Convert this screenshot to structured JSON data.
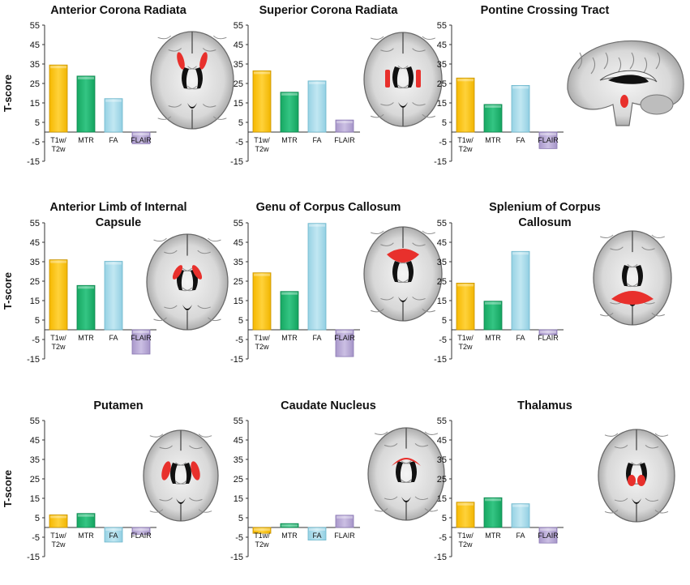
{
  "chart_data": {
    "type": "bar",
    "ylabel": "T-score",
    "yticks": [
      55,
      45,
      35,
      25,
      15,
      5,
      -5,
      -15
    ],
    "ylim": [
      -15,
      55
    ],
    "categories": [
      "T1w/T2w",
      "MTR",
      "FA",
      "FLAIR"
    ],
    "colors": {
      "T1w/T2w": "#f8c41a",
      "MTR": "#27b973",
      "FA": "#a9dbe9",
      "FLAIR": "#b9aad6"
    },
    "panels": [
      {
        "title": [
          "Anterior Corona Radiata"
        ],
        "values": [
          34.5,
          28.8,
          17.2,
          -6.0
        ],
        "brain": "axial-corona-anterior"
      },
      {
        "title": [
          "Superior Corona Radiata"
        ],
        "values": [
          31.5,
          20.5,
          26.3,
          6.2
        ],
        "brain": "axial-corona-superior"
      },
      {
        "title": [
          "Pontine Crossing Tract"
        ],
        "values": [
          27.8,
          14.2,
          24.0,
          -8.5
        ],
        "brain": "sagittal-pons"
      },
      {
        "title": [
          "Anterior Limb of Internal",
          "Capsule"
        ],
        "values": [
          36.0,
          22.8,
          35.2,
          -12.5
        ],
        "brain": "axial-internal-capsule"
      },
      {
        "title": [
          "Genu of Corpus Callosum"
        ],
        "values": [
          29.3,
          19.7,
          54.7,
          -13.8
        ],
        "brain": "axial-genu"
      },
      {
        "title": [
          "Splenium of Corpus",
          "Callosum"
        ],
        "values": [
          24.0,
          14.7,
          40.3,
          -2.5
        ],
        "brain": "axial-splenium"
      },
      {
        "title": [
          "Putamen"
        ],
        "values": [
          6.5,
          7.2,
          -7.5,
          -3.5
        ],
        "brain": "axial-putamen"
      },
      {
        "title": [
          "Caudate Nucleus"
        ],
        "values": [
          -3.0,
          2.0,
          -6.5,
          6.3
        ],
        "brain": "axial-caudate"
      },
      {
        "title": [
          "Thalamus"
        ],
        "values": [
          13.0,
          15.3,
          12.2,
          -8.0
        ],
        "brain": "axial-thalamus"
      }
    ]
  }
}
